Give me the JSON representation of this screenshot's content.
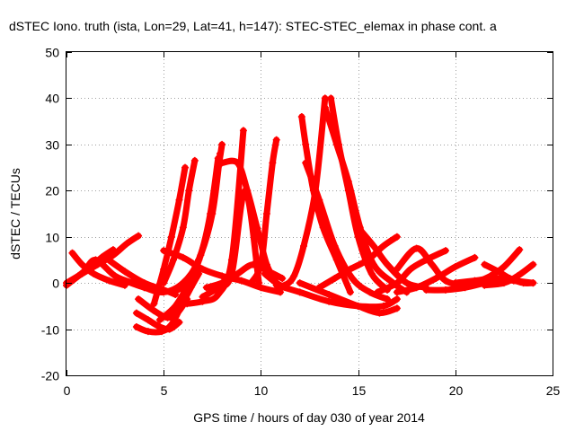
{
  "chart_data": {
    "type": "scatter",
    "title": "dSTEC Iono. truth (ista, Lon=29, Lat=41, h=147): STEC-STEC_elemax in phase cont. a",
    "xlabel": "GPS time / hours of day 030 of year 2014",
    "ylabel": "dSTEC  / TECUs",
    "xlim": [
      0,
      25
    ],
    "ylim": [
      -20,
      50
    ],
    "xticks": [
      0,
      5,
      10,
      15,
      20,
      25
    ],
    "yticks": [
      -20,
      -10,
      0,
      10,
      20,
      30,
      40,
      50
    ],
    "grid": true,
    "marker": "+",
    "color": "#ff0000",
    "series": [
      {
        "x": [
          0.0,
          0.8,
          1.6,
          2.4,
          3.1,
          3.7
        ],
        "y": [
          0.0,
          2.0,
          4.0,
          6.0,
          8.5,
          10.2
        ]
      },
      {
        "x": [
          0.0,
          0.6,
          1.3,
          1.8,
          2.4
        ],
        "y": [
          -0.5,
          1.5,
          3.5,
          5.5,
          7.2
        ]
      },
      {
        "x": [
          0.3,
          0.8,
          1.4,
          2.2,
          3.0
        ],
        "y": [
          6.5,
          4.0,
          2.0,
          0.5,
          -0.5
        ]
      },
      {
        "x": [
          0.3,
          0.9,
          1.5,
          2.5,
          3.4
        ],
        "y": [
          0.5,
          2.5,
          5.0,
          1.5,
          0.0
        ]
      },
      {
        "x": [
          2.0,
          3.0,
          4.0,
          5.0,
          5.6
        ],
        "y": [
          5.5,
          2.5,
          0.0,
          -1.5,
          -2.5
        ]
      },
      {
        "x": [
          3.6,
          4.2,
          4.9,
          5.4,
          5.9,
          6.4,
          6.8
        ],
        "y": [
          -9.5,
          -10.5,
          -10.5,
          -9.0,
          -5.0,
          -1.0,
          2.0
        ]
      },
      {
        "x": [
          3.6,
          4.2,
          4.8,
          5.3,
          5.8
        ],
        "y": [
          -6.5,
          -8.0,
          -9.5,
          -10.0,
          -8.5
        ]
      },
      {
        "x": [
          3.7,
          4.5,
          5.2,
          5.7,
          6.2
        ],
        "y": [
          -3.5,
          -6.0,
          -7.5,
          -6.5,
          -3.5
        ]
      },
      {
        "x": [
          4.5,
          5.0,
          5.4,
          5.8,
          6.1
        ],
        "y": [
          -4.5,
          3.0,
          10.0,
          18.0,
          25.0
        ]
      },
      {
        "x": [
          5.0,
          5.5,
          6.0,
          6.3,
          6.6
        ],
        "y": [
          0.0,
          5.0,
          12.0,
          20.0,
          26.5
        ]
      },
      {
        "x": [
          3.0,
          4.0,
          5.0,
          6.0,
          6.8,
          7.5,
          7.9
        ],
        "y": [
          0.5,
          -1.0,
          -2.0,
          0.0,
          5.0,
          15.0,
          28.0
        ]
      },
      {
        "x": [
          5.5,
          6.2,
          6.8,
          7.3,
          7.7,
          8.0
        ],
        "y": [
          -2.0,
          0.0,
          5.0,
          12.0,
          22.0,
          30.0
        ]
      },
      {
        "x": [
          4.8,
          5.6,
          6.3,
          6.9,
          7.4,
          7.8
        ],
        "y": [
          -8.0,
          -5.0,
          0.0,
          6.0,
          15.0,
          27.0
        ]
      },
      {
        "x": [
          6.2,
          7.0,
          7.8,
          8.5,
          9.1
        ],
        "y": [
          -4.5,
          -4.0,
          -2.5,
          5.0,
          33.0
        ]
      },
      {
        "x": [
          7.0,
          7.8,
          8.5,
          9.2,
          9.9
        ],
        "y": [
          -3.0,
          -1.0,
          2.0,
          20.0,
          0.0
        ]
      },
      {
        "x": [
          5.0,
          6.0,
          7.0,
          8.0,
          9.0,
          10.0,
          11.0
        ],
        "y": [
          7.0,
          5.5,
          3.0,
          1.5,
          0.5,
          -1.0,
          -2.0
        ]
      },
      {
        "x": [
          8.0,
          8.8,
          9.3,
          9.8,
          10.3,
          10.8
        ],
        "y": [
          26.0,
          26.0,
          20.0,
          12.0,
          4.0,
          0.0
        ]
      },
      {
        "x": [
          9.5,
          10.0,
          10.3,
          10.6,
          10.8
        ],
        "y": [
          0.0,
          4.0,
          15.0,
          26.0,
          31.0
        ]
      },
      {
        "x": [
          7.2,
          8.0,
          8.8,
          9.6,
          10.4,
          11.1
        ],
        "y": [
          -1.0,
          0.0,
          2.0,
          4.0,
          2.5,
          1.0
        ]
      },
      {
        "x": [
          10.2,
          10.8,
          11.2,
          11.7,
          12.2,
          12.8,
          13.3
        ],
        "y": [
          2.0,
          0.0,
          -0.5,
          1.5,
          8.0,
          20.0,
          40.0
        ]
      },
      {
        "x": [
          12.1,
          12.3,
          12.7,
          13.2,
          13.9,
          14.6
        ],
        "y": [
          36.0,
          30.0,
          20.0,
          12.0,
          5.0,
          -2.0
        ]
      },
      {
        "x": [
          12.3,
          13.0,
          13.8,
          14.7,
          15.6,
          16.5
        ],
        "y": [
          26.0,
          18.0,
          8.0,
          1.0,
          -2.0,
          -3.5
        ]
      },
      {
        "x": [
          13.6,
          14.0,
          14.5,
          15.0,
          15.7,
          16.5
        ],
        "y": [
          40.0,
          30.0,
          20.0,
          10.0,
          2.0,
          -1.5
        ]
      },
      {
        "x": [
          13.3,
          13.9,
          14.5,
          15.1,
          15.8,
          16.8,
          17.5
        ],
        "y": [
          38.0,
          30.0,
          22.0,
          12.0,
          4.0,
          0.0,
          -2.0
        ]
      },
      {
        "x": [
          13.0,
          13.8,
          14.6,
          15.5,
          16.3,
          17.0
        ],
        "y": [
          -1.0,
          1.0,
          3.0,
          5.0,
          8.0,
          10.0
        ]
      },
      {
        "x": [
          10.8,
          12.0,
          13.5,
          15.0,
          16.3,
          17.0
        ],
        "y": [
          -0.5,
          -2.0,
          -4.0,
          -5.0,
          -5.0,
          -3.5
        ]
      },
      {
        "x": [
          12.0,
          13.5,
          15.0,
          16.1,
          17.0
        ],
        "y": [
          0.0,
          -2.5,
          -5.0,
          -6.5,
          -5.5
        ]
      },
      {
        "x": [
          15.0,
          15.8,
          16.5,
          17.5,
          18.5
        ],
        "y": [
          12.0,
          8.0,
          4.0,
          0.0,
          -1.0
        ]
      },
      {
        "x": [
          16.0,
          17.0,
          17.7,
          18.5,
          19.5
        ],
        "y": [
          -2.0,
          0.0,
          3.0,
          5.0,
          7.0
        ]
      },
      {
        "x": [
          17.0,
          18.0,
          18.8,
          19.5,
          20.5,
          21.5
        ],
        "y": [
          3.0,
          7.5,
          4.0,
          0.5,
          -0.5,
          0.0
        ]
      },
      {
        "x": [
          17.0,
          18.0,
          19.0,
          20.0,
          21.0
        ],
        "y": [
          -2.0,
          -1.0,
          1.0,
          3.5,
          5.5
        ]
      },
      {
        "x": [
          18.5,
          19.5,
          20.5,
          21.5,
          22.5
        ],
        "y": [
          -1.5,
          -1.5,
          -1.0,
          0.0,
          1.0
        ]
      },
      {
        "x": [
          21.0,
          21.8,
          22.5,
          23.3
        ],
        "y": [
          0.0,
          1.5,
          3.5,
          7.2
        ]
      },
      {
        "x": [
          21.5,
          22.2,
          22.8,
          23.5,
          24.0
        ],
        "y": [
          4.0,
          2.5,
          1.0,
          0.0,
          0.0
        ]
      },
      {
        "x": [
          21.5,
          22.5,
          23.2,
          24.0
        ],
        "y": [
          -0.5,
          0.0,
          1.5,
          4.0
        ]
      },
      {
        "x": [
          20.0,
          21.0,
          22.0,
          23.0,
          24.0
        ],
        "y": [
          0.0,
          0.5,
          1.0,
          0.5,
          0.0
        ]
      }
    ]
  }
}
